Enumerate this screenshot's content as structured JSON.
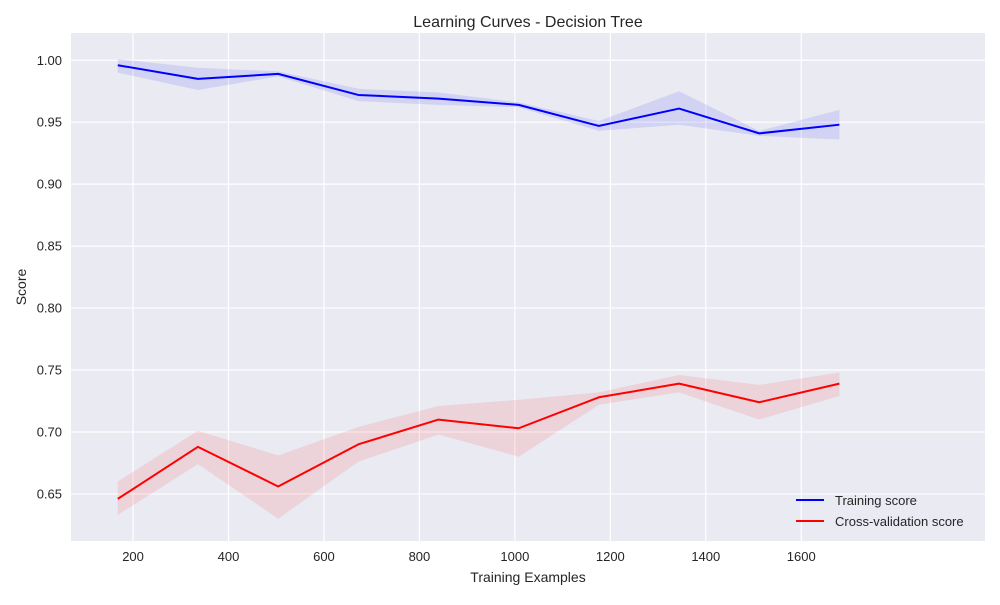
{
  "chart_data": {
    "type": "line",
    "title": "Learning Curves - Decision Tree",
    "xlabel": "Training Examples",
    "ylabel": "Score",
    "xlim": [
      70,
      1985
    ],
    "ylim": [
      0.612,
      1.022
    ],
    "xticks": [
      200,
      400,
      600,
      800,
      1000,
      1200,
      1400,
      1600
    ],
    "yticks": [
      0.65,
      0.7,
      0.75,
      0.8,
      0.85,
      0.9,
      0.95,
      1.0
    ],
    "grid": true,
    "background": "#eaeaf2",
    "legend_position": "lower-right",
    "x": [
      168,
      336,
      504,
      672,
      840,
      1008,
      1176,
      1344,
      1512,
      1680
    ],
    "series": [
      {
        "name": "Training score",
        "color": "#0000ff",
        "values": [
          0.996,
          0.985,
          0.989,
          0.972,
          0.969,
          0.964,
          0.947,
          0.961,
          0.941,
          0.948
        ],
        "upper": [
          1.001,
          0.994,
          0.991,
          0.977,
          0.974,
          0.966,
          0.951,
          0.975,
          0.943,
          0.96
        ],
        "lower": [
          0.99,
          0.976,
          0.987,
          0.967,
          0.964,
          0.962,
          0.943,
          0.948,
          0.939,
          0.936
        ]
      },
      {
        "name": "Cross-validation score",
        "color": "#ff0000",
        "values": [
          0.646,
          0.688,
          0.656,
          0.69,
          0.71,
          0.703,
          0.728,
          0.739,
          0.724,
          0.739
        ],
        "upper": [
          0.66,
          0.701,
          0.681,
          0.704,
          0.721,
          0.726,
          0.732,
          0.746,
          0.738,
          0.748
        ],
        "lower": [
          0.633,
          0.674,
          0.63,
          0.676,
          0.698,
          0.68,
          0.722,
          0.732,
          0.71,
          0.729
        ]
      }
    ]
  }
}
